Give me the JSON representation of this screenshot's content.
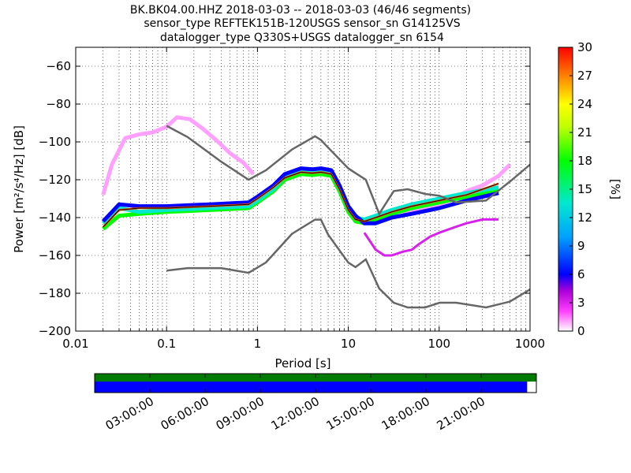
{
  "chart_data": {
    "type": "heatmap",
    "title_lines": [
      "BK.BK04.00.HHZ   2018-03-03 -- 2018-03-03  (46/46 segments)",
      "sensor_type REFTEK151B-120USGS sensor_sn G14125VS",
      "datalogger_type Q330S+USGS datalogger_sn 6154"
    ],
    "xlabel": "Period [s]",
    "ylabel": "Power [m²/s⁴/Hz] [dB]",
    "xscale": "log",
    "xlim": [
      0.01,
      1000
    ],
    "ylim": [
      -200,
      -50
    ],
    "xticks": [
      0.01,
      0.1,
      1,
      10,
      100,
      1000
    ],
    "xtick_labels": [
      "0.01",
      "0.1",
      "1",
      "10",
      "100",
      "1000"
    ],
    "yticks": [
      -200,
      -180,
      -160,
      -140,
      -120,
      -100,
      -80,
      -60
    ],
    "ytick_labels": [
      "−200",
      "−180",
      "−160",
      "−140",
      "−120",
      "−100",
      "−80",
      "−60"
    ],
    "colorbar": {
      "label": "[%]",
      "range": [
        0,
        30
      ],
      "ticks": [
        0,
        3,
        6,
        9,
        12,
        15,
        18,
        21,
        24,
        27,
        30
      ],
      "tick_labels": [
        "0",
        "3",
        "6",
        "9",
        "12",
        "15",
        "18",
        "21",
        "24",
        "27",
        "30"
      ]
    },
    "noise_models": [
      {
        "name": "NHNM",
        "period": [
          0.1,
          0.17,
          0.4,
          0.8,
          1.24,
          2.4,
          4.3,
          5.0,
          6.0,
          10.0,
          12.0,
          15.6,
          21.9,
          31.6,
          45.0,
          70.0,
          101.0,
          154.0,
          328.0,
          600.0,
          1000.0
        ],
        "power": [
          -91.5,
          -97.4,
          -110.5,
          -120.0,
          -115.0,
          -104.0,
          -97.0,
          -99.0,
          -103.0,
          -114.0,
          -116.5,
          -120.0,
          -138.0,
          -126.0,
          -125.0,
          -127.5,
          -128.5,
          -132.0,
          -131.0,
          -121.0,
          -112.0
        ]
      },
      {
        "name": "NLNM",
        "period": [
          0.1,
          0.17,
          0.4,
          0.8,
          1.24,
          2.4,
          4.3,
          5.0,
          6.0,
          10.0,
          12.0,
          15.6,
          21.9,
          31.6,
          45.0,
          70.0,
          101.0,
          154.0,
          328.0,
          600.0,
          1000.0
        ],
        "power": [
          -168.0,
          -166.7,
          -166.7,
          -169.2,
          -163.7,
          -148.6,
          -141.1,
          -141.1,
          -149.0,
          -163.8,
          -166.2,
          -162.1,
          -177.5,
          -185.0,
          -187.5,
          -187.5,
          -185.0,
          -185.0,
          -187.5,
          -184.4,
          -178.0
        ]
      }
    ],
    "psd_traces": [
      {
        "name": "mode",
        "color_pct": 28,
        "period": [
          0.02,
          0.03,
          0.05,
          0.1,
          0.3,
          0.8,
          1.0,
          1.5,
          2.0,
          3.0,
          4.0,
          5.0,
          6.5,
          8.0,
          10.0,
          12.0,
          15.0,
          20.0,
          30.0,
          50.0,
          100.0,
          200.0,
          450.0
        ],
        "power": [
          -145.0,
          -136.0,
          -135.0,
          -135.0,
          -134.0,
          -133.0,
          -130.0,
          -124.0,
          -119.0,
          -116.0,
          -116.5,
          -116.0,
          -117.0,
          -125.0,
          -136.0,
          -141.0,
          -142.0,
          -140.0,
          -137.0,
          -134.0,
          -131.0,
          -128.0,
          -122.0
        ]
      },
      {
        "name": "band-cyan",
        "color_pct": 13,
        "period": [
          0.02,
          0.03,
          0.05,
          0.1,
          0.3,
          0.8,
          1.0,
          1.5,
          2.0,
          3.0,
          4.0,
          5.0,
          6.5,
          8.0,
          10.0,
          12.0,
          15.0,
          20.0,
          30.0,
          50.0,
          100.0,
          200.0,
          450.0
        ],
        "power": [
          -143.0,
          -135.0,
          -137.0,
          -136.0,
          -135.0,
          -134.0,
          -131.0,
          -125.0,
          -118.0,
          -115.0,
          -115.5,
          -115.0,
          -116.0,
          -124.0,
          -135.0,
          -140.0,
          -141.0,
          -139.0,
          -136.0,
          -133.0,
          -130.0,
          -127.0,
          -124.0
        ]
      },
      {
        "name": "band-green",
        "color_pct": 18,
        "period": [
          0.02,
          0.03,
          0.05,
          0.1,
          0.3,
          0.8,
          1.0,
          1.5,
          2.0,
          3.0,
          4.0,
          5.0,
          6.5,
          8.0,
          10.0,
          12.0,
          15.0,
          20.0,
          30.0,
          50.0,
          100.0,
          200.0,
          450.0
        ],
        "power": [
          -146.0,
          -139.0,
          -138.0,
          -137.0,
          -136.0,
          -135.0,
          -132.0,
          -126.0,
          -120.0,
          -117.0,
          -117.5,
          -117.0,
          -118.0,
          -126.0,
          -137.0,
          -142.0,
          -143.0,
          -141.0,
          -138.0,
          -135.0,
          -132.0,
          -129.0,
          -126.0
        ]
      },
      {
        "name": "band-blue",
        "color_pct": 6,
        "period": [
          0.02,
          0.03,
          0.05,
          0.1,
          0.3,
          0.8,
          1.0,
          1.5,
          2.0,
          3.0,
          4.0,
          5.0,
          6.5,
          8.0,
          10.0,
          12.0,
          15.0,
          20.0,
          30.0,
          50.0,
          100.0,
          200.0,
          450.0
        ],
        "power": [
          -142.0,
          -133.0,
          -134.0,
          -134.0,
          -133.0,
          -132.0,
          -129.0,
          -123.0,
          -117.0,
          -114.0,
          -114.5,
          -114.0,
          -115.0,
          -123.0,
          -134.0,
          -139.0,
          -143.0,
          -143.0,
          -140.0,
          -138.0,
          -135.0,
          -131.0,
          -127.0
        ]
      },
      {
        "name": "band-purple-low",
        "color_pct": 3,
        "period": [
          15.0,
          20.0,
          25.0,
          30.0,
          40.0,
          50.0,
          60.0,
          80.0,
          100.0,
          150.0,
          200.0,
          300.0,
          450.0
        ],
        "power": [
          -148.0,
          -157.0,
          -160.0,
          -160.0,
          -158.0,
          -157.0,
          -154.0,
          -150.0,
          -148.0,
          -145.0,
          -143.0,
          -141.0,
          -141.0
        ]
      },
      {
        "name": "band-magenta-high",
        "color_pct": 1,
        "period": [
          0.02,
          0.025,
          0.035,
          0.05,
          0.07,
          0.1,
          0.13,
          0.18,
          0.25,
          0.35,
          0.5,
          0.7,
          0.9
        ],
        "power": [
          -128.0,
          -112.0,
          -98.0,
          -96.0,
          -95.0,
          -92.0,
          -87.0,
          -88.0,
          -93.0,
          -99.0,
          -106.0,
          -111.0,
          -117.0
        ]
      },
      {
        "name": "band-magenta-right",
        "color_pct": 1,
        "period": [
          40.0,
          60.0,
          100.0,
          150.0,
          200.0,
          300.0,
          450.0,
          600.0
        ],
        "power": [
          -138.0,
          -136.0,
          -133.0,
          -130.0,
          -126.0,
          -123.0,
          -118.0,
          -112.0
        ]
      }
    ],
    "timeline": {
      "tick_labels": [
        "03:00:00",
        "06:00:00",
        "09:00:00",
        "12:00:00",
        "15:00:00",
        "18:00:00",
        "21:00:00"
      ],
      "tick_hours": [
        3,
        6,
        9,
        12,
        15,
        18,
        21
      ],
      "span_hours": [
        0,
        24
      ],
      "top_bar": {
        "color": "#007a00",
        "coverage_hours": [
          0,
          24
        ]
      },
      "bottom_bar": {
        "color": "#0000ff",
        "coverage_hours": [
          0,
          23.5
        ]
      }
    }
  }
}
